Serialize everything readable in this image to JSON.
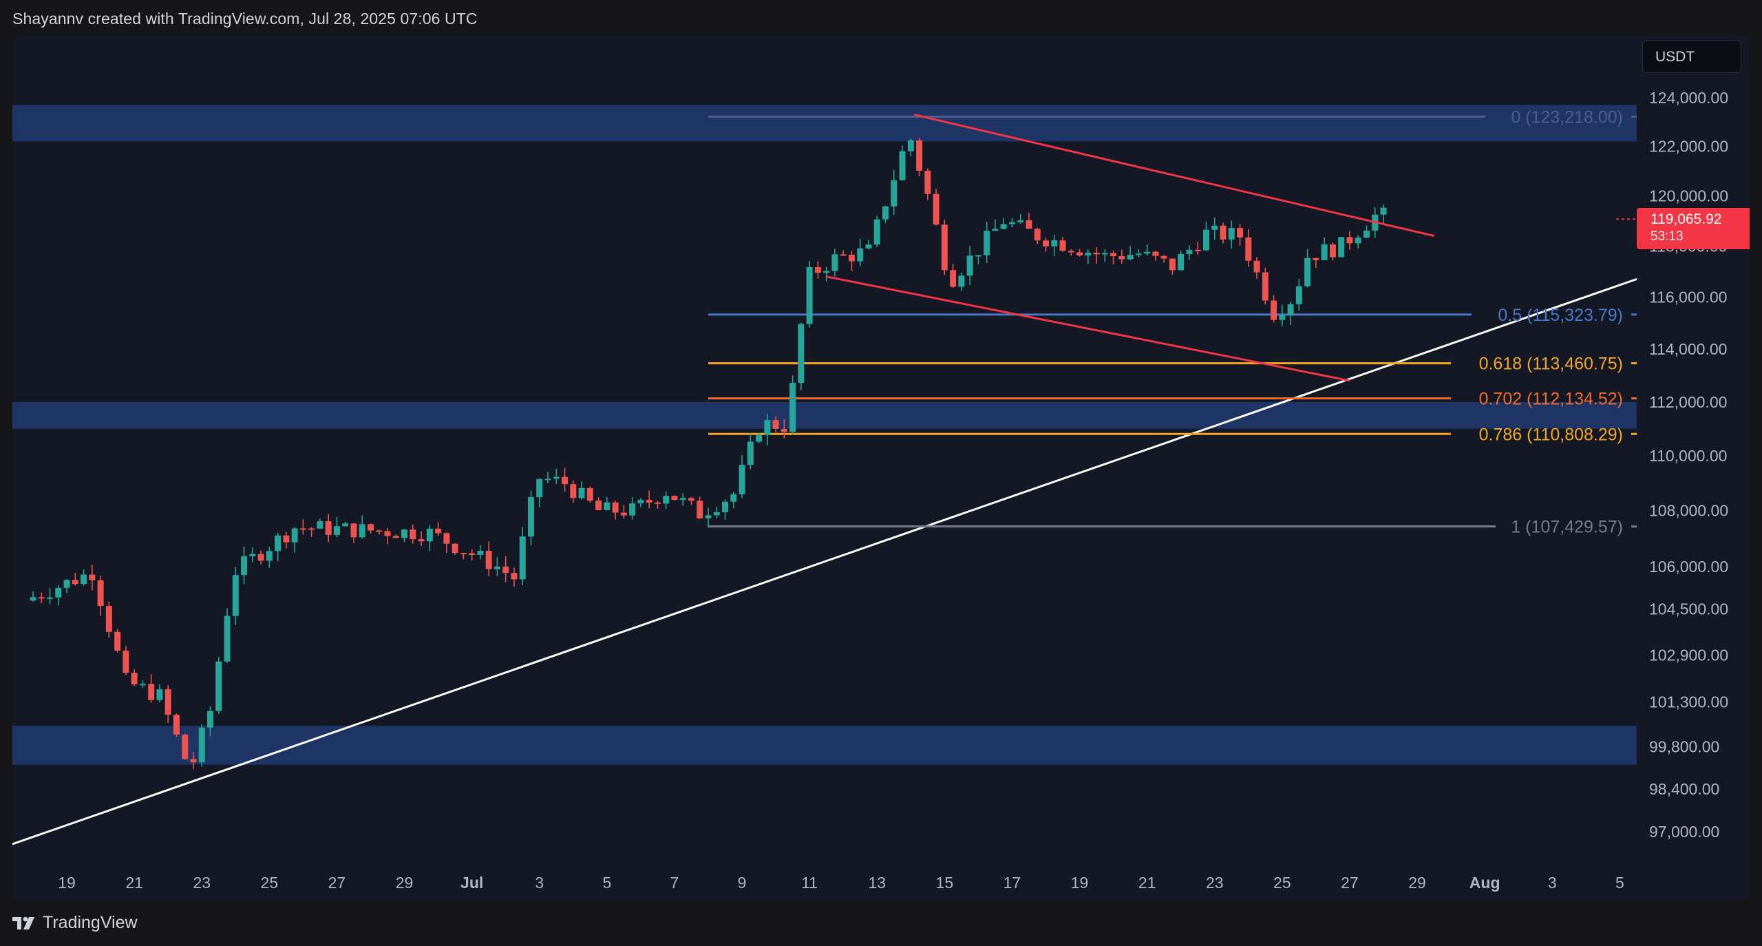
{
  "header": {
    "credit": "Shayannv created with TradingView.com, Jul 28, 2025 07:06 UTC"
  },
  "footer": {
    "brand": "TradingView",
    "logo_icon": "tradingview-logo-icon"
  },
  "currency": "USDT",
  "last_price": {
    "value": "119,065.92",
    "countdown": "53:13",
    "color": "#f23645"
  },
  "colors": {
    "background": "#141824",
    "up": "#26a69a",
    "down": "#ef5350",
    "zone": "#1e3a70",
    "channel": "#f23645",
    "trendline": "#ffffff",
    "fib_0": "#4e5f8c",
    "fib_05": "#4a78c8",
    "fib_0618": "#f5a623",
    "fib_0702": "#ef6c28",
    "fib_0786": "#f5a623",
    "fib_1": "#787b86"
  },
  "chart_data": {
    "type": "candlestick",
    "symbol_quote": "USDT",
    "price_axis": {
      "ticks": [
        "124,000.00",
        "122,000.00",
        "120,000.00",
        "118,000.00",
        "116,000.00",
        "114,000.00",
        "112,000.00",
        "110,000.00",
        "108,000.00",
        "106,000.00",
        "104,500.00",
        "102,900.00",
        "101,300.00",
        "99,800.00",
        "98,400.00",
        "97,000.00"
      ],
      "scale": "log"
    },
    "time_axis": {
      "ticks": [
        "19",
        "21",
        "23",
        "25",
        "27",
        "29",
        "Jul",
        "3",
        "5",
        "7",
        "9",
        "11",
        "13",
        "15",
        "17",
        "19",
        "21",
        "23",
        "25",
        "27",
        "29",
        "Aug",
        "3",
        "5"
      ]
    },
    "range_days": {
      "start": "2025-06-18",
      "end": "2025-08-05"
    },
    "key_prices": [
      {
        "date": "2025-06-18",
        "price": 104800
      },
      {
        "date": "2025-06-20",
        "price": 105800
      },
      {
        "date": "2025-06-21",
        "price": 102000
      },
      {
        "date": "2025-06-22",
        "price": 101500
      },
      {
        "date": "2025-06-22.9",
        "price": 99000
      },
      {
        "date": "2025-06-23.5",
        "price": 101000
      },
      {
        "date": "2025-06-24.2",
        "price": 105800
      },
      {
        "date": "2025-06-26",
        "price": 107400
      },
      {
        "date": "2025-06-28",
        "price": 107300
      },
      {
        "date": "2025-06-30",
        "price": 107200
      },
      {
        "date": "2025-07-02",
        "price": 106000
      },
      {
        "date": "2025-07-02.5",
        "price": 105600
      },
      {
        "date": "2025-07-03.2",
        "price": 109200
      },
      {
        "date": "2025-07-04",
        "price": 109000
      },
      {
        "date": "2025-07-05",
        "price": 108000
      },
      {
        "date": "2025-07-06",
        "price": 108000
      },
      {
        "date": "2025-07-07",
        "price": 108700
      },
      {
        "date": "2025-07-08",
        "price": 107900
      },
      {
        "date": "2025-07-09",
        "price": 108600
      },
      {
        "date": "2025-07-09.8",
        "price": 111200
      },
      {
        "date": "2025-07-10.6",
        "price": 111100
      },
      {
        "date": "2025-07-11.2",
        "price": 116800
      },
      {
        "date": "2025-07-12",
        "price": 117500
      },
      {
        "date": "2025-07-13",
        "price": 117800
      },
      {
        "date": "2025-07-14.2",
        "price": 122500
      },
      {
        "date": "2025-07-14.8",
        "price": 119800
      },
      {
        "date": "2025-07-15.4",
        "price": 116600
      },
      {
        "date": "2025-07-16",
        "price": 117500
      },
      {
        "date": "2025-07-17",
        "price": 119000
      },
      {
        "date": "2025-07-18",
        "price": 118400
      },
      {
        "date": "2025-07-19",
        "price": 118000
      },
      {
        "date": "2025-07-20",
        "price": 117600
      },
      {
        "date": "2025-07-21",
        "price": 117700
      },
      {
        "date": "2025-07-22",
        "price": 117200
      },
      {
        "date": "2025-07-23",
        "price": 118500
      },
      {
        "date": "2025-07-24",
        "price": 118400
      },
      {
        "date": "2025-07-25",
        "price": 115400
      },
      {
        "date": "2025-07-25.6",
        "price": 116000
      },
      {
        "date": "2025-07-26",
        "price": 117600
      },
      {
        "date": "2025-07-27",
        "price": 118000
      },
      {
        "date": "2025-07-28",
        "price": 119200
      }
    ],
    "zones": [
      {
        "from": 122200,
        "to": 123700
      },
      {
        "from": 111000,
        "to": 112000
      },
      {
        "from": 99200,
        "to": 100500
      }
    ],
    "fibonacci": [
      {
        "label": "0 (123,218.00)",
        "price": 123218.0
      },
      {
        "label": "0.5 (115,323.79)",
        "price": 115323.79
      },
      {
        "label": "0.618 (113,460.75)",
        "price": 113460.75
      },
      {
        "label": "0.702 (112,134.52)",
        "price": 112134.52
      },
      {
        "label": "0.786 (110,808.29)",
        "price": 110808.29
      },
      {
        "label": "1 (107,429.57)",
        "price": 107429.57
      }
    ],
    "channel": {
      "upper": {
        "from": {
          "date": "2025-07-14.1",
          "price": 123300
        },
        "to": {
          "date": "2025-07-29.5",
          "price": 118400
        }
      },
      "lower": {
        "from": {
          "date": "2025-07-11.5",
          "price": 116800
        },
        "to": {
          "date": "2025-07-27",
          "price": 112800
        }
      }
    },
    "trendline": {
      "from": {
        "date": "2025-06-18",
        "price": 96600
      },
      "to": {
        "date": "2025-08-05",
        "price": 116700
      }
    }
  }
}
